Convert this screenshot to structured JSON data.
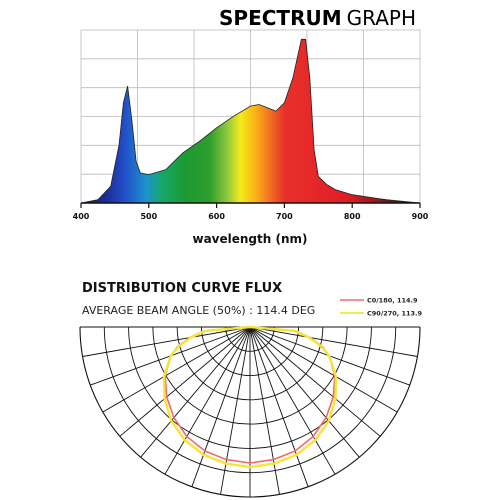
{
  "chart_data": [
    {
      "type": "area",
      "title_bold": "SPECTRUM",
      "title_light": "GRAPH",
      "xlabel": "wavelength (nm)",
      "ylabel": "",
      "xlim": [
        400,
        800
      ],
      "ylim": [
        0,
        1
      ],
      "grid": true,
      "x_ticks": [
        "400",
        "500",
        "600",
        "700",
        "800",
        "900"
      ],
      "tick_values": [
        400,
        500,
        600,
        700,
        800,
        900
      ],
      "x": [
        400,
        420,
        435,
        445,
        450,
        455,
        460,
        465,
        470,
        480,
        500,
        520,
        540,
        560,
        580,
        600,
        610,
        620,
        630,
        640,
        650,
        660,
        665,
        670,
        675,
        680,
        690,
        700,
        720,
        760,
        800
      ],
      "y": [
        0.0,
        0.02,
        0.1,
        0.35,
        0.6,
        0.7,
        0.5,
        0.25,
        0.18,
        0.17,
        0.2,
        0.3,
        0.37,
        0.45,
        0.52,
        0.58,
        0.59,
        0.57,
        0.55,
        0.6,
        0.75,
        0.98,
        0.98,
        0.75,
        0.32,
        0.16,
        0.11,
        0.08,
        0.05,
        0.02,
        0.0
      ]
    },
    {
      "type": "polar",
      "title": "DISTRIBUTION CURVE FLUX",
      "subtitle": "AVERAGE BEAM ANGLE  (50%) : 114.4 DEG",
      "series": [
        {
          "name": "C0/180, 114.9",
          "color": "#f06b6b",
          "angles": [
            0,
            10,
            20,
            30,
            40,
            50,
            60,
            70,
            75,
            80,
            85,
            90
          ],
          "values": [
            1.0,
            0.99,
            0.97,
            0.93,
            0.87,
            0.8,
            0.72,
            0.62,
            0.55,
            0.45,
            0.34,
            0.0
          ]
        },
        {
          "name": "C90/270, 113.9",
          "color": "#f7e436",
          "angles": [
            0,
            10,
            20,
            30,
            40,
            50,
            60,
            70,
            75,
            80,
            85,
            90
          ],
          "values": [
            1.03,
            1.02,
            1.0,
            0.96,
            0.9,
            0.82,
            0.73,
            0.62,
            0.54,
            0.44,
            0.33,
            0.0
          ]
        }
      ]
    }
  ]
}
